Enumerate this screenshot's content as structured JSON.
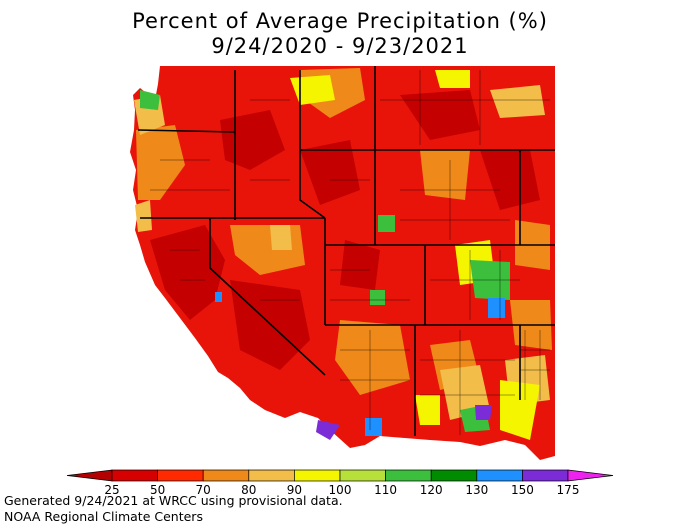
{
  "title_line1": "Percent of Average Precipitation (%)",
  "title_line2": "9/24/2020 - 9/23/2021",
  "legend": {
    "stops": [
      {
        "label": "25",
        "color": "#b30000"
      },
      {
        "label": "50",
        "color": "#d70000"
      },
      {
        "label": "70",
        "color": "#ff2a00"
      },
      {
        "label": "80",
        "color": "#ef8a1a"
      },
      {
        "label": "90",
        "color": "#f3bd4a"
      },
      {
        "label": "100",
        "color": "#f5f500"
      },
      {
        "label": "110",
        "color": "#b8e03a"
      },
      {
        "label": "120",
        "color": "#3cbf3c"
      },
      {
        "label": "130",
        "color": "#008c00"
      },
      {
        "label": "150",
        "color": "#1e90ff"
      },
      {
        "label": "175",
        "color": "#7b2cd6"
      }
    ],
    "left_cap_color": "#b30000",
    "right_cap_color": "#ee22ee"
  },
  "footer_line1": "Generated 9/24/2021 at WRCC using provisional data.",
  "footer_line2": "NOAA Regional Climate Centers"
}
